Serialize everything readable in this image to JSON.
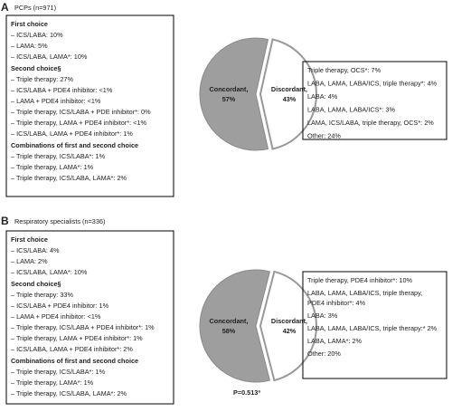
{
  "chart_data": [
    {
      "type": "pie",
      "panel_label": "A",
      "title": "PCPs (n=971)",
      "categories": [
        "Concordant,",
        "Discordant,"
      ],
      "values": [
        57,
        43
      ],
      "value_labels": [
        "57%",
        "43%"
      ],
      "colors": [
        "#9e9e9e",
        "#ffffff"
      ],
      "left_box": [
        {
          "heading": "First choice",
          "items": [
            "– ICS/LABA: 10%",
            "– LAMA: 5%",
            "– ICS/LABA, LAMA*: 10%"
          ]
        },
        {
          "heading": "Second choice§",
          "items": [
            "– Triple therapy: 27%",
            "– ICS/LABA + PDE4 inhibitor: <1%",
            "– LAMA + PDE4 inhibitor: <1%",
            "– Triple therapy, ICS/LABA + PDE inhibitor*: 0%",
            "– Triple therapy, LAMA + PDE4 inhibitor*: <1%",
            "– ICS/LABA, LAMA + PDE4 inhibitor*: 1%"
          ]
        },
        {
          "heading": "Combinations of first and second choice",
          "items": [
            "– Triple therapy, ICS/LABA*: 1%",
            "– Triple therapy, LAMA*: 1%",
            "– Triple therapy, ICS/LABA, LAMA*: 2%"
          ]
        }
      ],
      "right_box": [
        "Triple therapy, OCS*: 7%",
        "LABA, LAMA, LABA/ICS, triple therapy*: 4%",
        "LABA: 4%",
        "LABA, LAMA, LABA/ICS*: 3%",
        "LAMA, ICS/LABA, triple therapy, OCS*: 2%",
        "Other: 24%"
      ]
    },
    {
      "type": "pie",
      "panel_label": "B",
      "title": "Respiratory specialists (n=336)",
      "categories": [
        "Concordant,",
        "Discordant,"
      ],
      "values": [
        58,
        42
      ],
      "value_labels": [
        "58%",
        "42%"
      ],
      "colors": [
        "#9e9e9e",
        "#ffffff"
      ],
      "annotation": "P=0.513ª",
      "left_box": [
        {
          "heading": "First choice",
          "items": [
            "– ICS/LABA: 4%",
            "– LAMA: 2%",
            "– ICS/LABA, LAMA*: 10%"
          ]
        },
        {
          "heading": "Second choice§",
          "items": [
            "– Triple therapy: 33%",
            "– ICS/LABA + PDE4 inhibitor: 1%",
            "– LAMA + PDE4 inhibitor: <1%",
            "– Triple therapy, ICS/LABA + PDE4 inhibitor*: 1%",
            "– Triple therapy, LAMA + PDE4 inhibitor*: 1%",
            "– ICS/LABA, LAMA + PDE4 inhibitor*: 2%"
          ]
        },
        {
          "heading": "Combinations of first and second choice",
          "items": [
            "– Triple therapy, ICS/LABA*: 1%",
            "– Triple therapy, LAMA*: 1%",
            "– Triple therapy, ICS/LABA, LAMA*: 2%"
          ]
        }
      ],
      "right_box": [
        "Triple therapy, PDE4 inhibitor*: 10%",
        [
          "LABA, LAMA, LABA/ICS, triple therapy,",
          "PDE4 inhibitor*: 4%"
        ],
        "LABA: 3%",
        "LABA, LAMA, LABA/ICS, triple therapy:* 2%",
        "LABA, LAMA*: 2%",
        "Other: 20%"
      ]
    }
  ]
}
